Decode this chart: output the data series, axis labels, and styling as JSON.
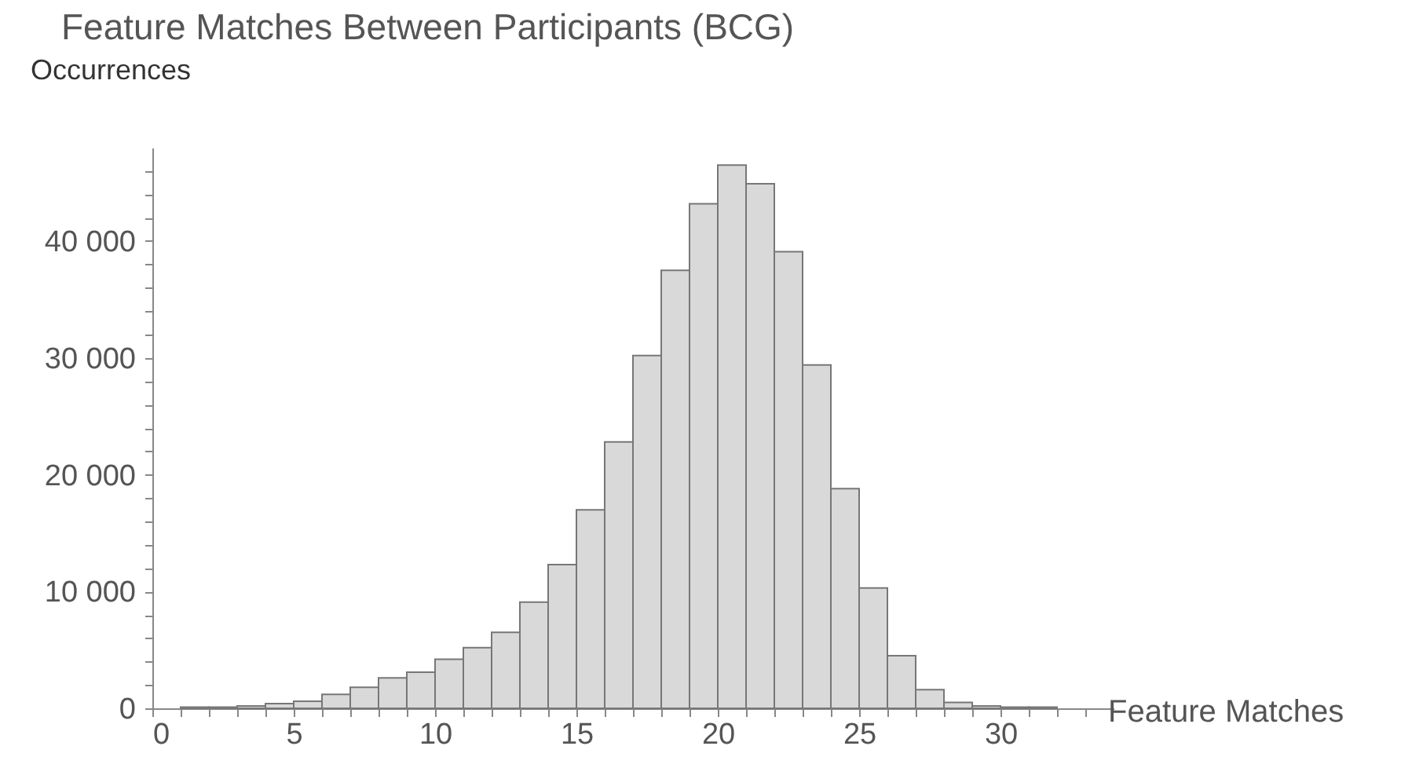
{
  "chart_data": {
    "type": "histogram",
    "title": "Feature Matches Between Participants (BCG)",
    "xlabel": "Feature Matches",
    "ylabel": "Occurrences",
    "bins": [
      1,
      2,
      3,
      4,
      5,
      6,
      7,
      8,
      9,
      10,
      11,
      12,
      13,
      14,
      15,
      16,
      17,
      18,
      19,
      20,
      21,
      22,
      23,
      24,
      25,
      26,
      27,
      28,
      29,
      30,
      31,
      32
    ],
    "values": [
      100,
      100,
      200,
      400,
      600,
      1200,
      1800,
      2600,
      3100,
      4200,
      5200,
      6500,
      9100,
      12300,
      17000,
      22800,
      30200,
      37500,
      43200,
      46500,
      44900,
      39100,
      29400,
      18800,
      10300,
      4500,
      1600,
      500,
      200,
      100,
      100
    ],
    "color": "#d9d9d9",
    "xlim": [
      0,
      34
    ],
    "xticks": [
      0,
      {
        "value": 1,
        "label": null
      },
      {
        "value": 2,
        "label": null
      },
      {
        "value": 3,
        "label": null
      },
      {
        "value": 4,
        "label": null
      },
      5,
      {
        "value": 6,
        "label": null
      },
      {
        "value": 7,
        "label": null
      },
      {
        "value": 8,
        "label": null
      },
      {
        "value": 9,
        "label": null
      },
      10,
      {
        "value": 11,
        "label": null
      },
      {
        "value": 12,
        "label": null
      },
      {
        "value": 13,
        "label": null
      },
      {
        "value": 14,
        "label": null
      },
      15,
      {
        "value": 16,
        "label": null
      },
      {
        "value": 17,
        "label": null
      },
      {
        "value": 18,
        "label": null
      },
      {
        "value": 19,
        "label": null
      },
      20,
      {
        "value": 21,
        "label": null
      },
      {
        "value": 22,
        "label": null
      },
      {
        "value": 23,
        "label": null
      },
      {
        "value": 24,
        "label": null
      },
      25,
      {
        "value": 26,
        "label": null
      },
      {
        "value": 27,
        "label": null
      },
      {
        "value": 28,
        "label": null
      },
      {
        "value": 29,
        "label": null
      },
      30,
      {
        "value": 31,
        "label": null
      },
      {
        "value": 32,
        "label": null
      },
      {
        "value": 33,
        "label": null
      }
    ],
    "ylim": [
      0,
      48000
    ],
    "yticks": [
      {
        "value": 0,
        "label": "0"
      },
      {
        "value": 2000,
        "label": null
      },
      {
        "value": 4000,
        "label": null
      },
      {
        "value": 6000,
        "label": null
      },
      {
        "value": 8000,
        "label": null
      },
      {
        "value": 10000,
        "label": "10 000"
      },
      {
        "value": 12000,
        "label": null
      },
      {
        "value": 14000,
        "label": null
      },
      {
        "value": 16000,
        "label": null
      },
      {
        "value": 18000,
        "label": null
      },
      {
        "value": 20000,
        "label": "20 000"
      },
      {
        "value": 22000,
        "label": null
      },
      {
        "value": 24000,
        "label": null
      },
      {
        "value": 26000,
        "label": null
      },
      {
        "value": 28000,
        "label": null
      },
      {
        "value": 30000,
        "label": "30 000"
      },
      {
        "value": 32000,
        "label": null
      },
      {
        "value": 34000,
        "label": null
      },
      {
        "value": 36000,
        "label": null
      },
      {
        "value": 38000,
        "label": null
      },
      {
        "value": 40000,
        "label": "40 000"
      },
      {
        "value": 42000,
        "label": null
      },
      {
        "value": 44000,
        "label": null
      },
      {
        "value": 46000,
        "label": null
      }
    ],
    "grid": false
  }
}
